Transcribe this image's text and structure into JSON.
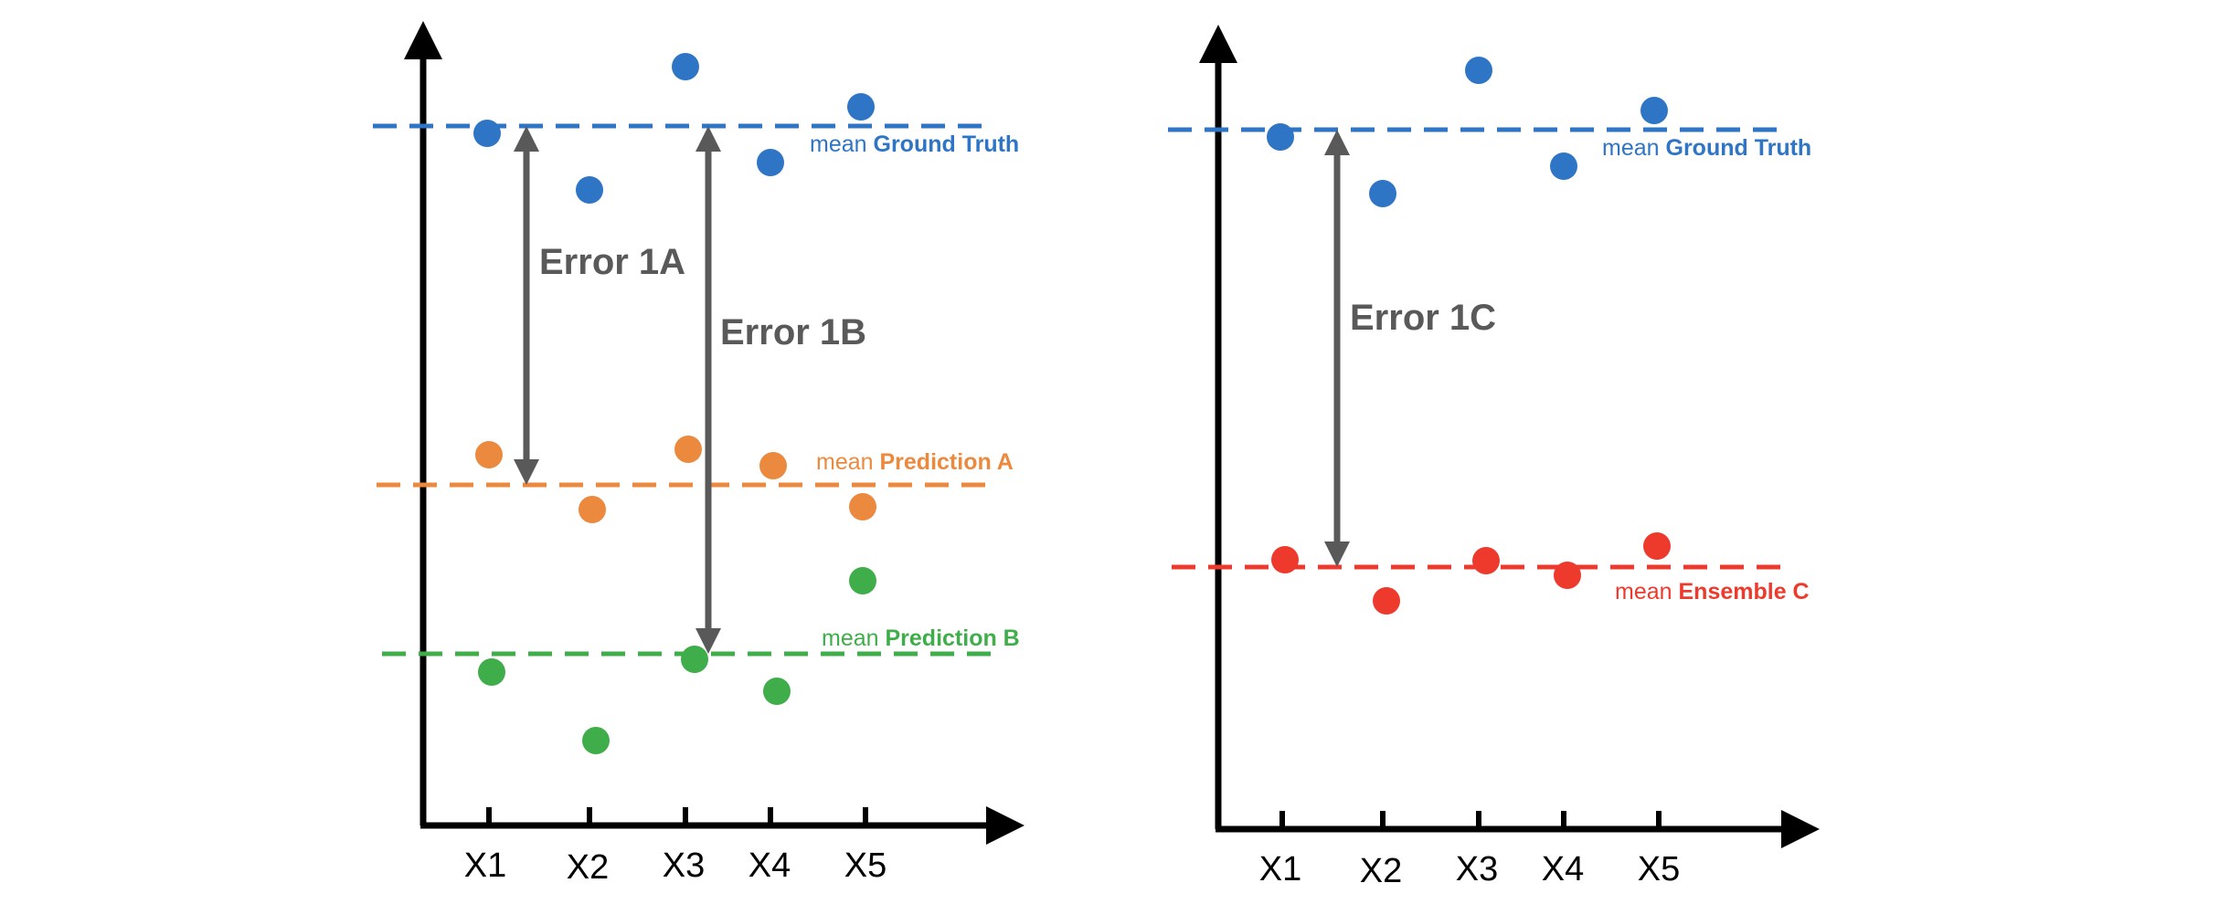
{
  "colors": {
    "axis": "#000000",
    "error_arrow": "#595959",
    "ground_truth": "#2E75C6",
    "prediction_a": "#EB8A3F",
    "prediction_b": "#3FAE4A",
    "ensemble_c": "#EE3A2C"
  },
  "left_panel": {
    "x_ticks": [
      "X1",
      "X2",
      "X3",
      "X4",
      "X5"
    ],
    "series": {
      "ground_truth": {
        "mean_prefix": "mean",
        "mean_name": "Ground Truth"
      },
      "prediction_a": {
        "mean_prefix": "mean",
        "mean_name": "Prediction A"
      },
      "prediction_b": {
        "mean_prefix": "mean",
        "mean_name": "Prediction B"
      }
    },
    "errors": {
      "e1a": "Error 1A",
      "e1b": "Error 1B"
    }
  },
  "right_panel": {
    "x_ticks": [
      "X1",
      "X2",
      "X3",
      "X4",
      "X5"
    ],
    "series": {
      "ground_truth": {
        "mean_prefix": "mean",
        "mean_name": "Ground Truth"
      },
      "ensemble_c": {
        "mean_prefix": "mean",
        "mean_name": "Ensemble C"
      }
    },
    "errors": {
      "e1c": "Error 1C"
    }
  }
}
